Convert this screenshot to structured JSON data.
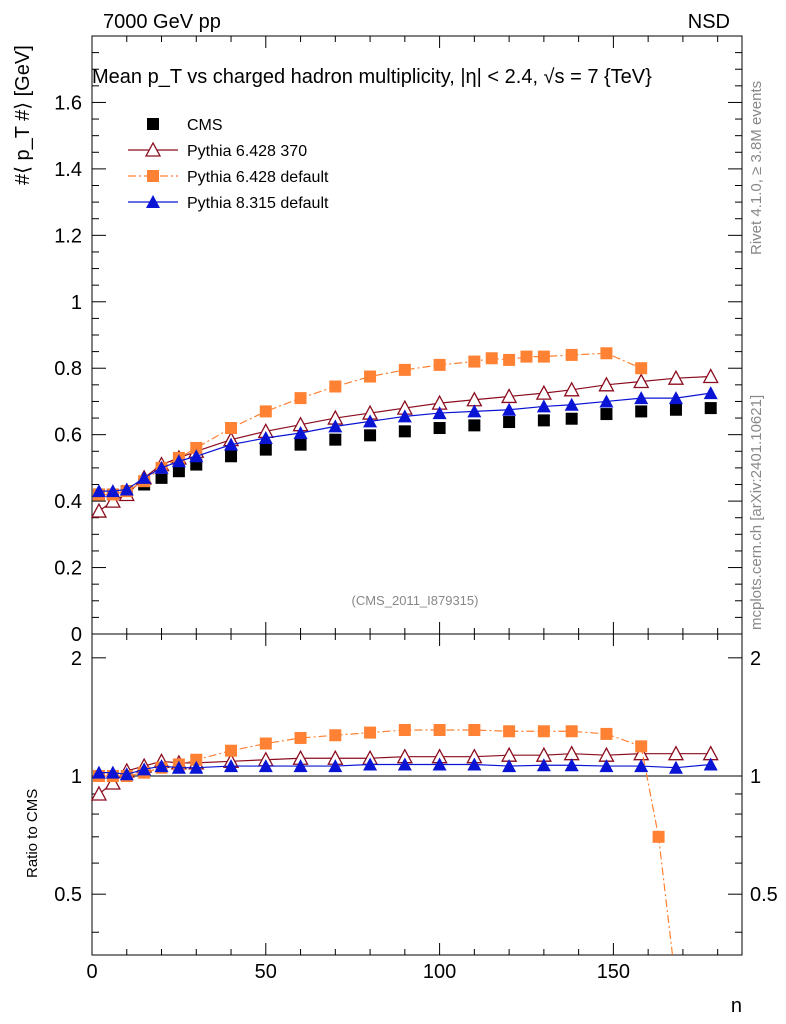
{
  "header": {
    "energy_label": "7000 GeV pp",
    "process_label": "NSD",
    "title": "Mean p_T vs charged hadron multiplicity, |η| < 2.4, √s = 7 {TeV}",
    "side_top": "Rivet 4.1.0, ≥ 3.8M events",
    "side_bottom": "mcplots.cern.ch [arXiv:2401.10621]",
    "watermark": "(CMS_2011_I879315)"
  },
  "chart_data": [
    {
      "type": "scatter",
      "panel": "main",
      "xlabel": "n",
      "ylabel": "#⟨ p_T #⟩ [GeV]",
      "xlim": [
        0,
        187
      ],
      "ylim": [
        0,
        1.8
      ],
      "xticks": [
        0,
        50,
        100,
        150
      ],
      "yticks": [
        0,
        0.2,
        0.4,
        0.6,
        0.8,
        1,
        1.2,
        1.4,
        1.6
      ],
      "ytick_labels": [
        "0",
        "0.2",
        "0.4",
        "0.6",
        "0.8",
        "1",
        "1.2",
        "1.4",
        "1.6"
      ],
      "legend": [
        "CMS",
        "Pythia 6.428 370",
        "Pythia 6.428 default",
        "Pythia 8.315 default"
      ],
      "legend_position": "top-left",
      "series": [
        {
          "name": "CMS",
          "color": "#000000",
          "marker": "square-filled",
          "x": [
            2,
            6,
            10,
            15,
            20,
            25,
            30,
            40,
            50,
            60,
            70,
            80,
            90,
            100,
            110,
            120,
            130,
            138,
            148,
            158,
            168,
            178
          ],
          "y": [
            0.42,
            0.42,
            0.43,
            0.45,
            0.47,
            0.49,
            0.51,
            0.535,
            0.555,
            0.57,
            0.585,
            0.598,
            0.61,
            0.62,
            0.628,
            0.638,
            0.643,
            0.648,
            0.662,
            0.67,
            0.675,
            0.68
          ]
        },
        {
          "name": "Pythia 6.428 370",
          "color": "#8b0d1f",
          "marker": "triangle-open",
          "x": [
            2,
            6,
            10,
            15,
            20,
            25,
            30,
            40,
            50,
            60,
            70,
            80,
            90,
            100,
            110,
            120,
            130,
            138,
            148,
            158,
            168,
            178
          ],
          "y": [
            0.37,
            0.4,
            0.42,
            0.47,
            0.51,
            0.53,
            0.55,
            0.585,
            0.61,
            0.63,
            0.65,
            0.665,
            0.68,
            0.695,
            0.705,
            0.715,
            0.725,
            0.735,
            0.75,
            0.76,
            0.77,
            0.775
          ]
        },
        {
          "name": "Pythia 6.428 default",
          "color": "#ff8133",
          "marker": "square-filled",
          "x": [
            2,
            6,
            10,
            15,
            20,
            25,
            30,
            40,
            50,
            60,
            70,
            80,
            90,
            100,
            110,
            115,
            120,
            125,
            130,
            138,
            148,
            158
          ],
          "y": [
            0.42,
            0.42,
            0.43,
            0.46,
            0.5,
            0.53,
            0.56,
            0.62,
            0.67,
            0.71,
            0.745,
            0.775,
            0.795,
            0.81,
            0.82,
            0.83,
            0.825,
            0.835,
            0.835,
            0.84,
            0.845,
            0.8
          ]
        },
        {
          "name": "Pythia 8.315 default",
          "color": "#0a14d4",
          "marker": "triangle-filled",
          "x": [
            2,
            6,
            10,
            15,
            20,
            25,
            30,
            40,
            50,
            60,
            70,
            80,
            90,
            100,
            110,
            120,
            130,
            138,
            148,
            158,
            168,
            178
          ],
          "y": [
            0.43,
            0.43,
            0.435,
            0.47,
            0.5,
            0.52,
            0.535,
            0.57,
            0.59,
            0.605,
            0.625,
            0.64,
            0.655,
            0.665,
            0.67,
            0.675,
            0.685,
            0.69,
            0.7,
            0.71,
            0.71,
            0.725
          ]
        }
      ]
    },
    {
      "type": "line",
      "panel": "ratio",
      "xlabel": "n",
      "ylabel": "Ratio to CMS",
      "xlim": [
        0,
        187
      ],
      "ylim": [
        0.35,
        2.3
      ],
      "yscale": "log",
      "yticks_labeled": [
        0.5,
        1,
        2
      ],
      "ytick_labels": [
        "0.5",
        "1",
        "2"
      ],
      "reference_line": 1,
      "series": [
        {
          "name": "Pythia 6.428 370",
          "color": "#8b0d1f",
          "marker": "triangle-open",
          "x": [
            2,
            6,
            10,
            15,
            20,
            25,
            30,
            40,
            50,
            60,
            70,
            80,
            90,
            100,
            110,
            120,
            130,
            138,
            148,
            158,
            168,
            178
          ],
          "y": [
            0.9,
            0.96,
            1.03,
            1.06,
            1.09,
            1.08,
            1.08,
            1.09,
            1.1,
            1.11,
            1.11,
            1.11,
            1.12,
            1.12,
            1.12,
            1.13,
            1.13,
            1.14,
            1.13,
            1.14,
            1.14,
            1.14
          ]
        },
        {
          "name": "Pythia 6.428 default",
          "color": "#ff8133",
          "marker": "square-filled",
          "x": [
            2,
            6,
            10,
            15,
            20,
            25,
            30,
            40,
            50,
            60,
            70,
            80,
            90,
            100,
            110,
            120,
            130,
            138,
            148,
            158,
            163,
            167
          ],
          "y": [
            1.0,
            1.0,
            1.0,
            1.02,
            1.05,
            1.07,
            1.1,
            1.16,
            1.21,
            1.25,
            1.27,
            1.29,
            1.31,
            1.31,
            1.31,
            1.3,
            1.3,
            1.3,
            1.28,
            1.19,
            0.7,
            0.35
          ]
        },
        {
          "name": "Pythia 8.315 default",
          "color": "#0a14d4",
          "marker": "triangle-filled",
          "x": [
            2,
            6,
            10,
            15,
            20,
            25,
            30,
            40,
            50,
            60,
            70,
            80,
            90,
            100,
            110,
            120,
            130,
            138,
            148,
            158,
            168,
            178
          ],
          "y": [
            1.02,
            1.02,
            1.01,
            1.04,
            1.06,
            1.05,
            1.05,
            1.06,
            1.06,
            1.06,
            1.06,
            1.07,
            1.07,
            1.07,
            1.07,
            1.06,
            1.065,
            1.065,
            1.06,
            1.06,
            1.05,
            1.07
          ]
        }
      ]
    }
  ]
}
